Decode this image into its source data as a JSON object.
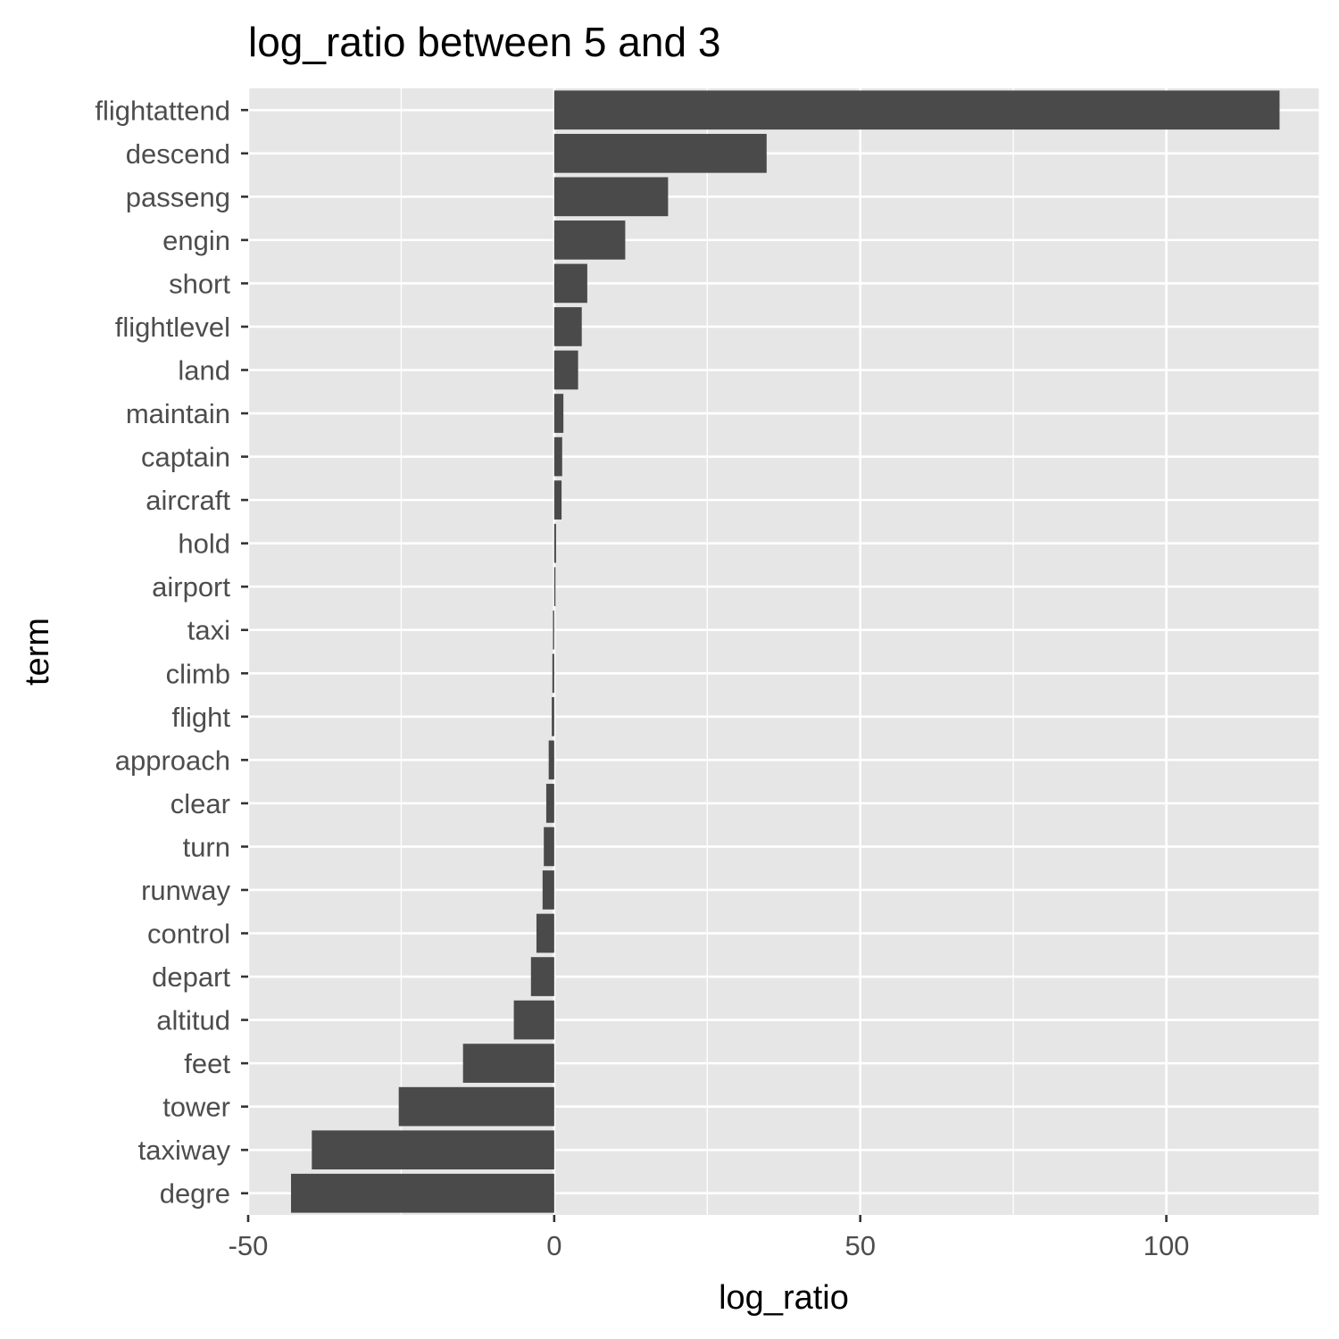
{
  "chart_data": {
    "type": "bar",
    "orientation": "horizontal",
    "title": "log_ratio between 5 and 3",
    "xlabel": "log_ratio",
    "ylabel": "term",
    "xlim": [
      -50,
      125
    ],
    "x_ticks": [
      -50,
      0,
      50,
      100
    ],
    "x_tick_labels": [
      "-50",
      "0",
      "50",
      "100"
    ],
    "grid": true,
    "legend": "none",
    "colors": {
      "bar": "#4a4a4a",
      "panel": "#e6e6e6",
      "grid": "#ffffff",
      "tick": "#333333"
    },
    "categories": [
      "flightattend",
      "descend",
      "passeng",
      "engin",
      "short",
      "flightlevel",
      "land",
      "maintain",
      "captain",
      "aircraft",
      "hold",
      "airport",
      "taxi",
      "climb",
      "flight",
      "approach",
      "clear",
      "turn",
      "runway",
      "control",
      "depart",
      "altitud",
      "feet",
      "tower",
      "taxiway",
      "degre"
    ],
    "values": [
      118.5,
      34.7,
      18.6,
      11.6,
      5.4,
      4.5,
      3.9,
      1.5,
      1.3,
      1.2,
      0.3,
      0.2,
      -0.2,
      -0.3,
      -0.4,
      -0.9,
      -1.3,
      -1.7,
      -1.9,
      -2.9,
      -3.8,
      -6.6,
      -14.9,
      -25.4,
      -39.6,
      -43.0
    ]
  }
}
